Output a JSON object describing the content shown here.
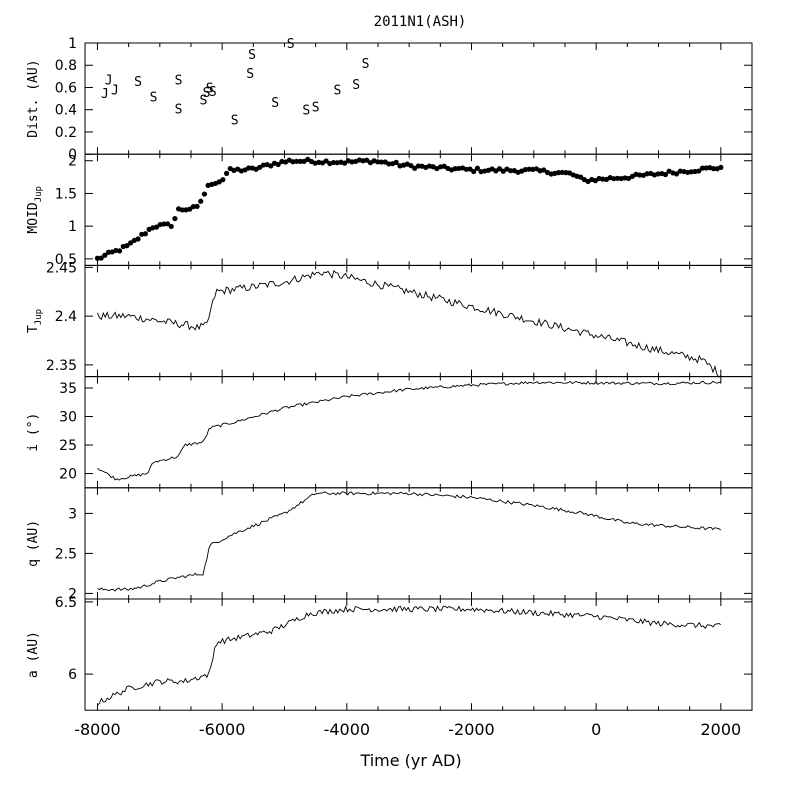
{
  "figure": {
    "title": "2011N1(ASH)",
    "xlabel": "Time (yr AD)"
  },
  "chart_data": [
    {
      "id": "dist",
      "type": "scatter",
      "ylabel": "Dist. (AU)",
      "xlim": [
        -8200,
        2500
      ],
      "ylim": [
        0,
        1
      ],
      "yticks": [
        0,
        0.2,
        0.4,
        0.6,
        0.8,
        1
      ],
      "yticklabels": [
        "0",
        "0.2",
        "0.4",
        "0.6",
        "0.8",
        "1"
      ],
      "marker_text": true,
      "points": [
        {
          "x": -7880,
          "y": 0.55,
          "label": "J"
        },
        {
          "x": -7820,
          "y": 0.67,
          "label": "J"
        },
        {
          "x": -7720,
          "y": 0.58,
          "label": "J"
        },
        {
          "x": -7350,
          "y": 0.66,
          "label": "S"
        },
        {
          "x": -7100,
          "y": 0.52,
          "label": "S"
        },
        {
          "x": -6700,
          "y": 0.67,
          "label": "S"
        },
        {
          "x": -6700,
          "y": 0.41,
          "label": "S"
        },
        {
          "x": -6300,
          "y": 0.49,
          "label": "S"
        },
        {
          "x": -6250,
          "y": 0.56,
          "label": "S"
        },
        {
          "x": -6200,
          "y": 0.6,
          "label": "S"
        },
        {
          "x": -6150,
          "y": 0.57,
          "label": "S"
        },
        {
          "x": -5800,
          "y": 0.31,
          "label": "S"
        },
        {
          "x": -5550,
          "y": 0.73,
          "label": "S"
        },
        {
          "x": -5520,
          "y": 0.9,
          "label": "S"
        },
        {
          "x": -5150,
          "y": 0.47,
          "label": "S"
        },
        {
          "x": -4900,
          "y": 1.0,
          "label": "S"
        },
        {
          "x": -4650,
          "y": 0.4,
          "label": "S"
        },
        {
          "x": -4500,
          "y": 0.43,
          "label": "S"
        },
        {
          "x": -4150,
          "y": 0.58,
          "label": "S"
        },
        {
          "x": -3850,
          "y": 0.63,
          "label": "S"
        },
        {
          "x": -3700,
          "y": 0.82,
          "label": "S"
        }
      ]
    },
    {
      "id": "moid",
      "type": "scatter",
      "ylabel": "MOID",
      "ylabel_sub": "Jup",
      "xlim": [
        -8200,
        2500
      ],
      "ylim": [
        0.4,
        2.1
      ],
      "yticks": [
        0.5,
        1,
        1.5,
        2
      ],
      "yticklabels": [
        "0.5",
        "1",
        "1.5",
        "2"
      ],
      "keyframes": [
        [
          -8000,
          0.5
        ],
        [
          -7500,
          0.7
        ],
        [
          -7300,
          0.85
        ],
        [
          -7100,
          1.0
        ],
        [
          -6800,
          1.02
        ],
        [
          -6700,
          1.25
        ],
        [
          -6400,
          1.28
        ],
        [
          -6200,
          1.65
        ],
        [
          -6000,
          1.7
        ],
        [
          -5900,
          1.85
        ],
        [
          -5500,
          1.87
        ],
        [
          -5200,
          1.95
        ],
        [
          -4900,
          2.0
        ],
        [
          -4000,
          1.98
        ],
        [
          -3600,
          2.0
        ],
        [
          -3000,
          1.92
        ],
        [
          -2000,
          1.86
        ],
        [
          -1000,
          1.85
        ],
        [
          -400,
          1.8
        ],
        [
          -200,
          1.7
        ],
        [
          500,
          1.75
        ],
        [
          1000,
          1.8
        ],
        [
          1500,
          1.85
        ],
        [
          2000,
          1.9
        ]
      ],
      "noise": 0.03,
      "n": 170
    },
    {
      "id": "tjup",
      "type": "line",
      "ylabel": "T",
      "ylabel_sub": "Jup",
      "xlim": [
        -8200,
        2500
      ],
      "ylim": [
        2.338,
        2.452
      ],
      "yticks": [
        2.35,
        2.4,
        2.45
      ],
      "yticklabels": [
        "2.35",
        "2.4",
        "2.45"
      ],
      "keyframes": [
        [
          -8000,
          2.4
        ],
        [
          -7500,
          2.4
        ],
        [
          -6800,
          2.393
        ],
        [
          -6500,
          2.39
        ],
        [
          -6400,
          2.388
        ],
        [
          -6250,
          2.39
        ],
        [
          -6100,
          2.425
        ],
        [
          -5500,
          2.43
        ],
        [
          -5000,
          2.435
        ],
        [
          -4400,
          2.445
        ],
        [
          -4000,
          2.44
        ],
        [
          -3000,
          2.425
        ],
        [
          -2000,
          2.41
        ],
        [
          -1000,
          2.395
        ],
        [
          0,
          2.38
        ],
        [
          1000,
          2.365
        ],
        [
          1700,
          2.355
        ],
        [
          2000,
          2.34
        ]
      ],
      "noise": 0.004,
      "n": 320
    },
    {
      "id": "incl",
      "type": "line",
      "ylabel": "i (°)",
      "xlim": [
        -8200,
        2500
      ],
      "ylim": [
        17.5,
        37
      ],
      "yticks": [
        20,
        25,
        30,
        35
      ],
      "yticklabels": [
        "20",
        "25",
        "30",
        "35"
      ],
      "keyframes": [
        [
          -8000,
          21
        ],
        [
          -7700,
          19
        ],
        [
          -7200,
          20
        ],
        [
          -7100,
          22
        ],
        [
          -6700,
          23
        ],
        [
          -6600,
          25
        ],
        [
          -6300,
          25.5
        ],
        [
          -6200,
          28
        ],
        [
          -5800,
          29
        ],
        [
          -5000,
          31.5
        ],
        [
          -4000,
          33.5
        ],
        [
          -3000,
          34.8
        ],
        [
          -2000,
          35.5
        ],
        [
          -1000,
          36
        ],
        [
          0,
          35.9
        ],
        [
          1000,
          35.8
        ],
        [
          2000,
          36
        ]
      ],
      "noise": 0.25,
      "n": 320
    },
    {
      "id": "q",
      "type": "line",
      "ylabel": "q (AU)",
      "xlim": [
        -8200,
        2500
      ],
      "ylim": [
        1.93,
        3.32
      ],
      "yticks": [
        2,
        2.5,
        3
      ],
      "yticklabels": [
        "2",
        "2.5",
        "3"
      ],
      "keyframes": [
        [
          -8000,
          2.05
        ],
        [
          -7500,
          2.05
        ],
        [
          -7300,
          2.08
        ],
        [
          -7000,
          2.15
        ],
        [
          -6700,
          2.2
        ],
        [
          -6300,
          2.25
        ],
        [
          -6200,
          2.6
        ],
        [
          -5800,
          2.75
        ],
        [
          -5000,
          3.0
        ],
        [
          -4500,
          3.25
        ],
        [
          -3000,
          3.25
        ],
        [
          -2000,
          3.2
        ],
        [
          -1000,
          3.1
        ],
        [
          -200,
          3.0
        ],
        [
          500,
          2.88
        ],
        [
          1000,
          2.85
        ],
        [
          2000,
          2.8
        ]
      ],
      "noise": 0.02,
      "n": 320
    },
    {
      "id": "a",
      "type": "line",
      "ylabel": "a (AU)",
      "xlim": [
        -8200,
        2500
      ],
      "ylim": [
        5.75,
        6.52
      ],
      "yticks": [
        6,
        6.5
      ],
      "yticklabels": [
        "6",
        "6.5"
      ],
      "keyframes": [
        [
          -8000,
          5.8
        ],
        [
          -7500,
          5.9
        ],
        [
          -7000,
          5.95
        ],
        [
          -6600,
          5.95
        ],
        [
          -6200,
          6.0
        ],
        [
          -6100,
          6.22
        ],
        [
          -5200,
          6.3
        ],
        [
          -4600,
          6.42
        ],
        [
          -4000,
          6.45
        ],
        [
          -2000,
          6.45
        ],
        [
          0,
          6.4
        ],
        [
          1000,
          6.35
        ],
        [
          2000,
          6.33
        ]
      ],
      "noise": 0.02,
      "n": 320
    }
  ],
  "xaxis": {
    "xlim": [
      -8200,
      2500
    ],
    "ticks": [
      -8000,
      -6000,
      -4000,
      -2000,
      0,
      2000
    ],
    "ticklabels": [
      "-8000",
      "-6000",
      "-4000",
      "-2000",
      "0",
      "2000"
    ]
  }
}
